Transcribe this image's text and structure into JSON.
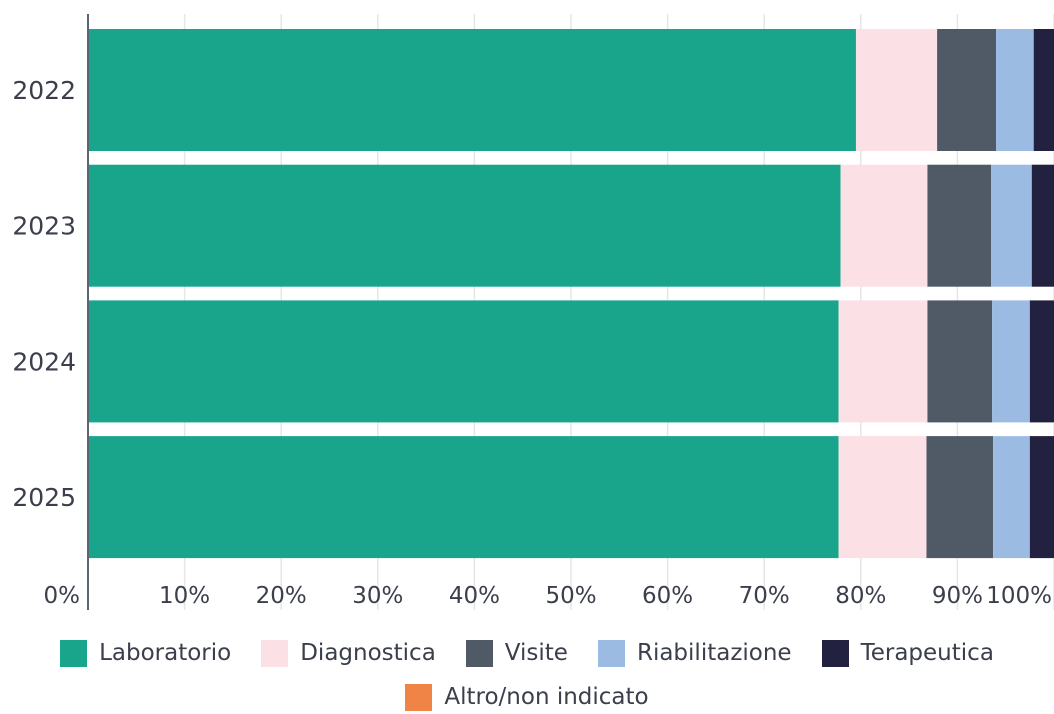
{
  "chart_data": {
    "type": "bar",
    "orientation": "horizontal",
    "stacked": true,
    "normalized": true,
    "categories": [
      "2022",
      "2023",
      "2024",
      "2025"
    ],
    "series": [
      {
        "name": "Laboratorio",
        "color": "#19a58b",
        "values": [
          79.5,
          77.9,
          77.7,
          77.7
        ]
      },
      {
        "name": "Diagnostica",
        "color": "#fbe0e5",
        "values": [
          8.4,
          9.0,
          9.2,
          9.1
        ]
      },
      {
        "name": "Visite",
        "color": "#4f5a66",
        "values": [
          6.1,
          6.6,
          6.7,
          6.9
        ]
      },
      {
        "name": "Riabilitazione",
        "color": "#9cbbe3",
        "values": [
          3.9,
          4.2,
          3.9,
          3.8
        ]
      },
      {
        "name": "Terapeutica",
        "color": "#22213f",
        "values": [
          2.1,
          2.3,
          2.5,
          2.5
        ]
      },
      {
        "name": "Altro/non indicato",
        "color": "#ef8446",
        "values": [
          0,
          0,
          0,
          0
        ]
      }
    ],
    "xlim": [
      0,
      100
    ],
    "x_ticks": [
      "0%",
      "10%",
      "20%",
      "30%",
      "40%",
      "50%",
      "60%",
      "70%",
      "80%",
      "90%",
      "100%"
    ],
    "grid": "vertical",
    "legend_position": "bottom"
  }
}
